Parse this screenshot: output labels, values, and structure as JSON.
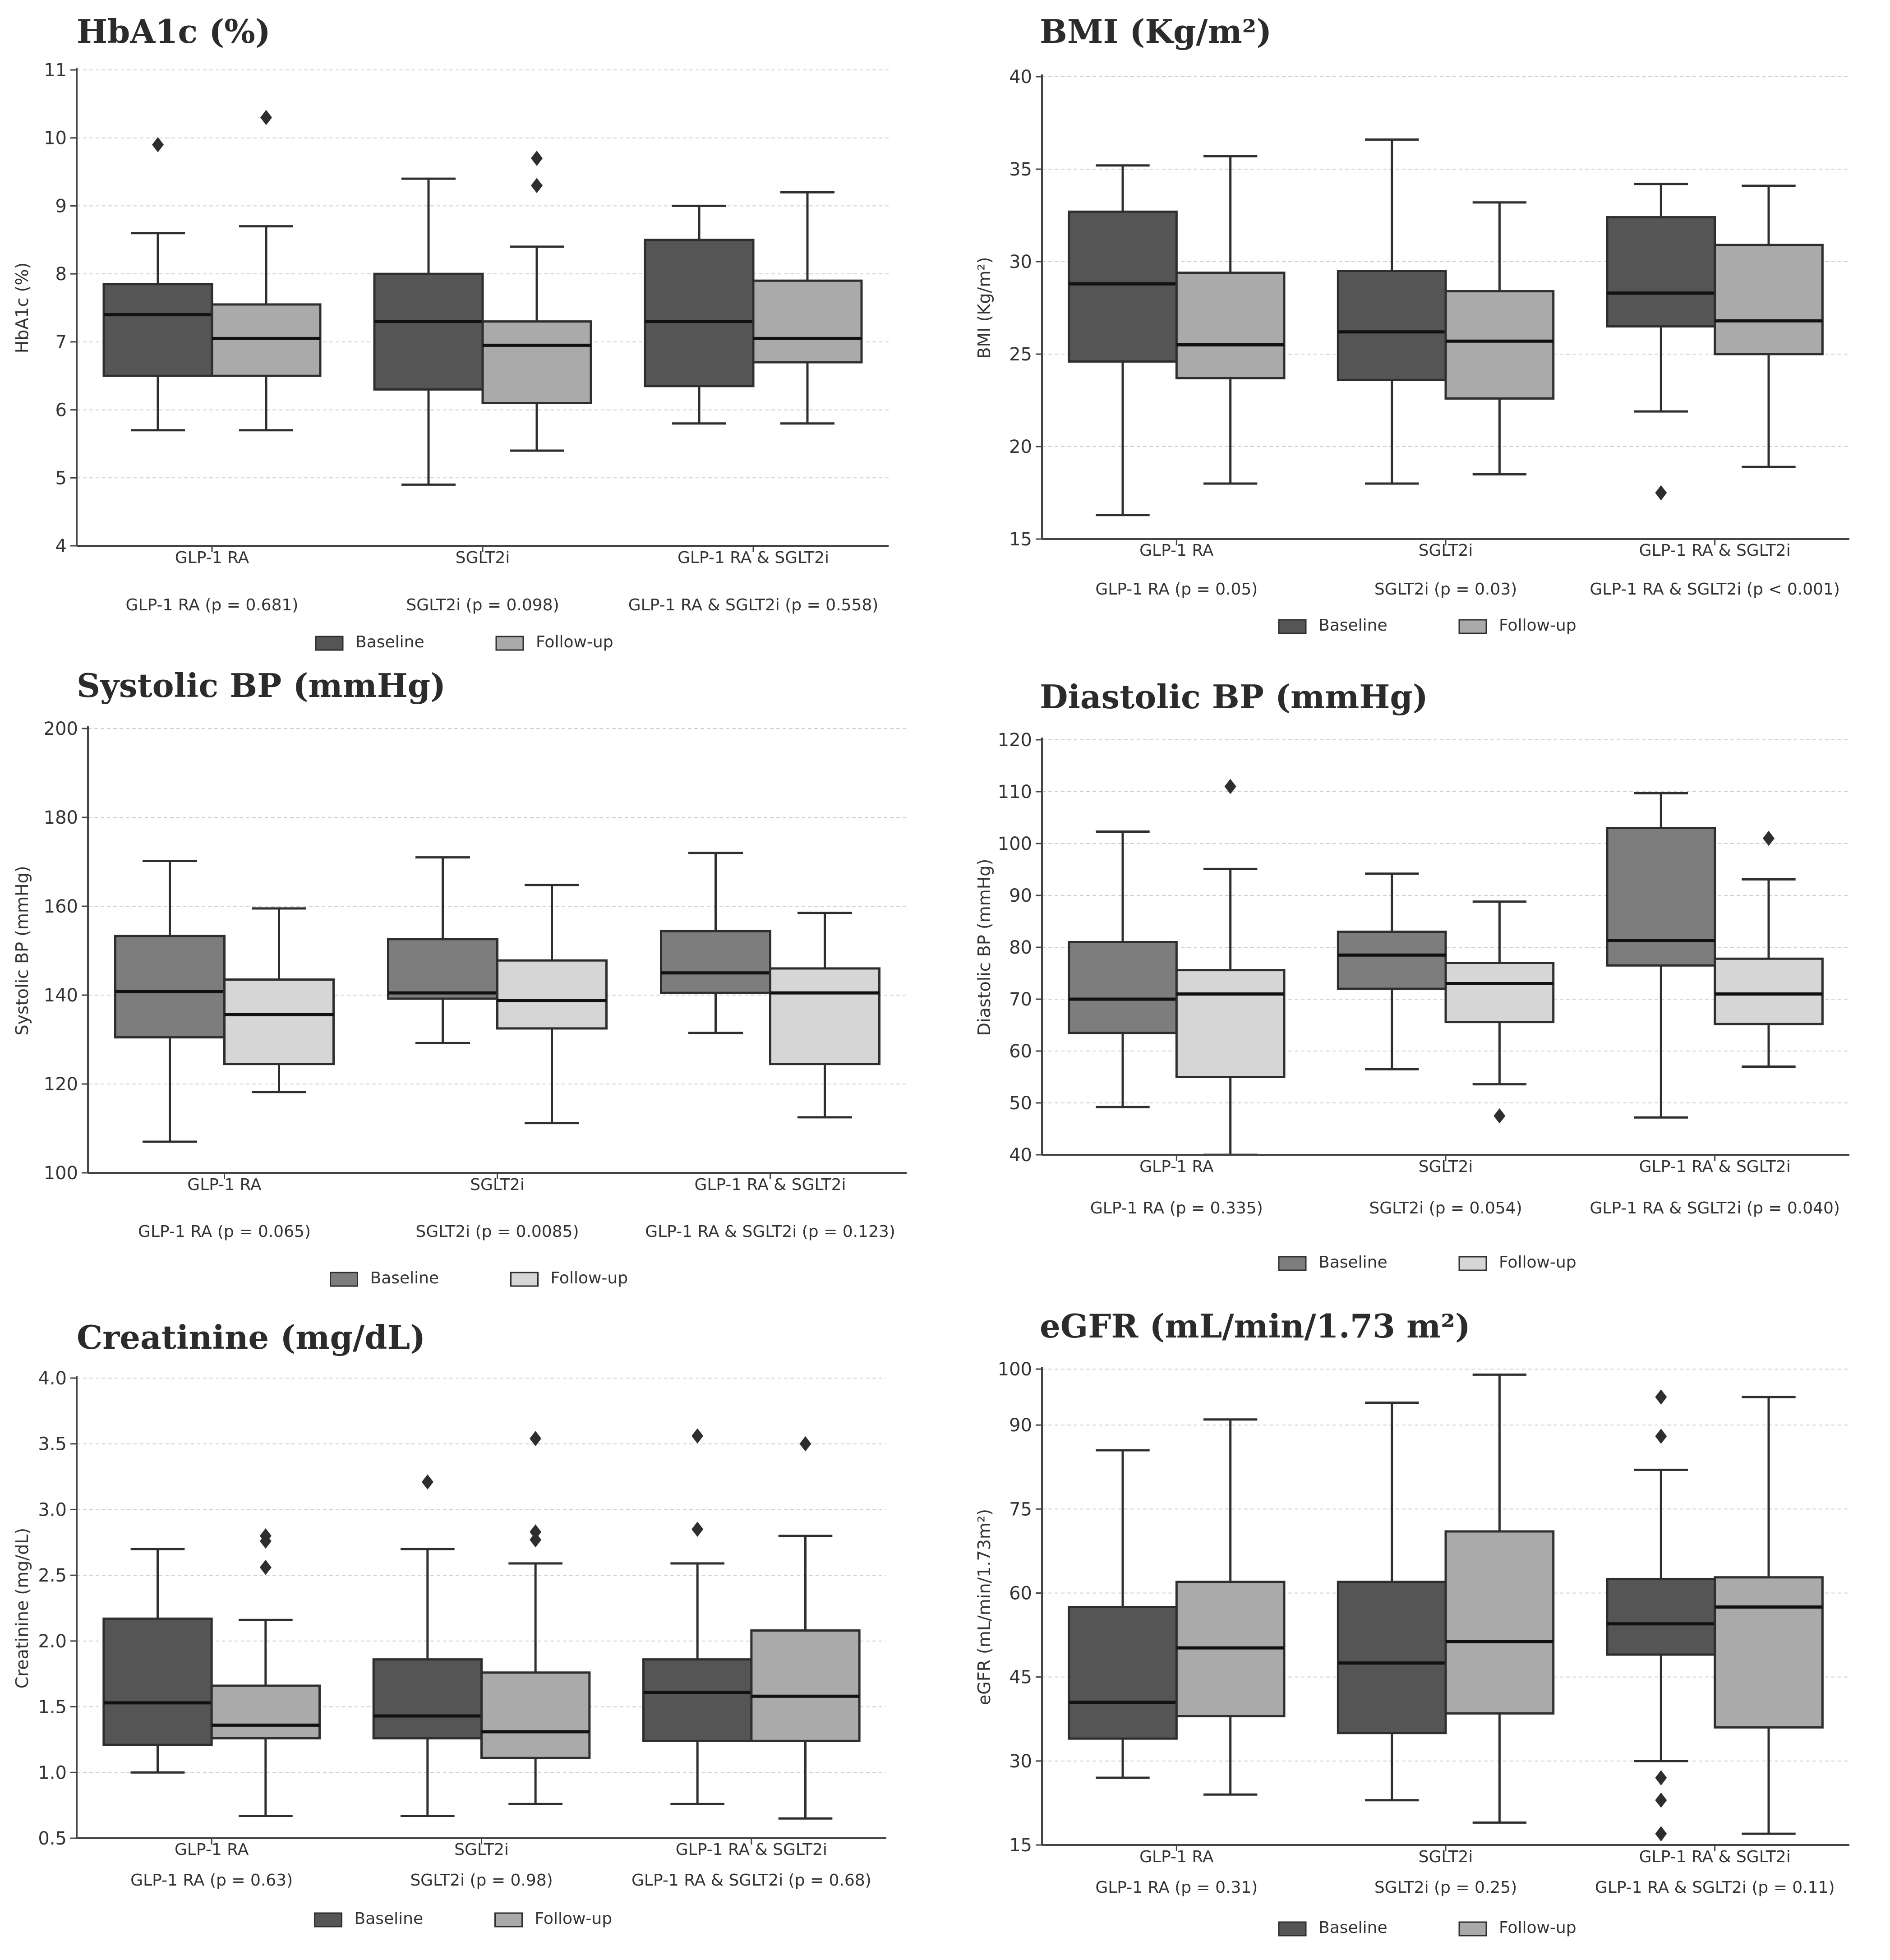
{
  "legend": {
    "baseline": "Baseline",
    "followup": "Follow-up"
  },
  "chart_data": [
    {
      "type": "box",
      "title": "HbA1c (%)",
      "ylabel": "HbA1c (%)",
      "ylim": [
        4,
        11
      ],
      "yticks": [
        4,
        5,
        6,
        7,
        8,
        9,
        10,
        11
      ],
      "colors": {
        "baseline": "#555555",
        "followup": "#aaaaaa"
      },
      "categories": [
        "GLP-1 RA",
        "SGLT2i",
        "GLP-1 RA & SGLT2i"
      ],
      "pvalues": [
        "GLP-1 RA (p = 0.681)",
        "SGLT2i (p = 0.098)",
        "GLP-1 RA & SGLT2i (p = 0.558)"
      ],
      "series": [
        {
          "name": "Baseline",
          "boxes": [
            {
              "min": 5.7,
              "q1": 6.5,
              "median": 7.4,
              "q3": 7.85,
              "max": 8.6,
              "fliers": [
                9.9
              ]
            },
            {
              "min": 4.9,
              "q1": 6.3,
              "median": 7.3,
              "q3": 8.0,
              "max": 9.4,
              "fliers": []
            },
            {
              "min": 5.8,
              "q1": 6.35,
              "median": 7.3,
              "q3": 8.5,
              "max": 9.0,
              "fliers": []
            }
          ]
        },
        {
          "name": "Follow-up",
          "boxes": [
            {
              "min": 5.7,
              "q1": 6.5,
              "median": 7.05,
              "q3": 7.55,
              "max": 8.7,
              "fliers": [
                10.3
              ]
            },
            {
              "min": 5.4,
              "q1": 6.1,
              "median": 6.95,
              "q3": 7.3,
              "max": 8.4,
              "fliers": [
                9.3,
                9.7
              ]
            },
            {
              "min": 5.8,
              "q1": 6.7,
              "median": 7.05,
              "q3": 7.9,
              "max": 9.2,
              "fliers": []
            }
          ]
        }
      ]
    },
    {
      "type": "box",
      "title": "BMI (Kg/m²)",
      "ylabel": "BMI (Kg/m²)",
      "ylim": [
        15,
        40
      ],
      "yticks": [
        15,
        20,
        25,
        30,
        35,
        40
      ],
      "colors": {
        "baseline": "#555555",
        "followup": "#aaaaaa"
      },
      "categories": [
        "GLP-1 RA",
        "SGLT2i",
        "GLP-1 RA & SGLT2i"
      ],
      "pvalues": [
        "GLP-1 RA (p = 0.05)",
        "SGLT2i (p = 0.03)",
        "GLP-1 RA & SGLT2i (p < 0.001)"
      ],
      "series": [
        {
          "name": "Baseline",
          "boxes": [
            {
              "min": 16.3,
              "q1": 24.6,
              "median": 28.8,
              "q3": 32.7,
              "max": 35.2,
              "fliers": []
            },
            {
              "min": 18.0,
              "q1": 23.6,
              "median": 26.2,
              "q3": 29.5,
              "max": 36.6,
              "fliers": []
            },
            {
              "min": 21.9,
              "q1": 26.5,
              "median": 28.3,
              "q3": 32.4,
              "max": 34.2,
              "fliers": [
                17.5
              ]
            }
          ]
        },
        {
          "name": "Follow-up",
          "boxes": [
            {
              "min": 18.0,
              "q1": 23.7,
              "median": 25.5,
              "q3": 29.4,
              "max": 35.7,
              "fliers": []
            },
            {
              "min": 18.5,
              "q1": 22.6,
              "median": 25.7,
              "q3": 28.4,
              "max": 33.2,
              "fliers": []
            },
            {
              "min": 18.9,
              "q1": 25.0,
              "median": 26.8,
              "q3": 30.9,
              "max": 34.1,
              "fliers": []
            }
          ]
        }
      ]
    },
    {
      "type": "box",
      "title": "Systolic BP (mmHg)",
      "ylabel": "Systolic BP (mmHg)",
      "ylim": [
        100,
        200
      ],
      "yticks": [
        100,
        120,
        140,
        160,
        180,
        200
      ],
      "colors": {
        "baseline": "#7d7d7d",
        "followup": "#d6d6d6"
      },
      "categories": [
        "GLP-1 RA",
        "SGLT2i",
        "GLP-1 RA & SGLT2i"
      ],
      "pvalues": [
        "GLP-1 RA (p = 0.065)",
        "SGLT2i (p = 0.0085)",
        "GLP-1 RA & SGLT2i (p = 0.123)"
      ],
      "series": [
        {
          "name": "Baseline",
          "boxes": [
            {
              "min": 107,
              "q1": 130.5,
              "median": 140.8,
              "q3": 153.3,
              "max": 170.2,
              "fliers": []
            },
            {
              "min": 129.2,
              "q1": 139.2,
              "median": 140.5,
              "q3": 152.6,
              "max": 171.0,
              "fliers": []
            },
            {
              "min": 131.5,
              "q1": 140.5,
              "median": 145.0,
              "q3": 154.4,
              "max": 172.0,
              "fliers": []
            }
          ]
        },
        {
          "name": "Follow-up",
          "boxes": [
            {
              "min": 118.2,
              "q1": 124.5,
              "median": 135.6,
              "q3": 143.5,
              "max": 159.5,
              "fliers": []
            },
            {
              "min": 111.2,
              "q1": 132.5,
              "median": 138.8,
              "q3": 147.8,
              "max": 164.8,
              "fliers": []
            },
            {
              "min": 112.5,
              "q1": 124.5,
              "median": 140.5,
              "q3": 146.0,
              "max": 158.5,
              "fliers": []
            }
          ]
        }
      ]
    },
    {
      "type": "box",
      "title": "Diastolic BP (mmHg)",
      "ylabel": "Diastolic BP (mmHg)",
      "ylim": [
        40,
        120
      ],
      "yticks": [
        40,
        50,
        60,
        70,
        80,
        90,
        100,
        110,
        120
      ],
      "colors": {
        "baseline": "#7d7d7d",
        "followup": "#d6d6d6"
      },
      "categories": [
        "GLP-1 RA",
        "SGLT2i",
        "GLP-1 RA & SGLT2i"
      ],
      "pvalues": [
        "GLP-1 RA (p = 0.335)",
        "SGLT2i (p = 0.054)",
        "GLP-1 RA & SGLT2i (p = 0.040)"
      ],
      "series": [
        {
          "name": "Baseline",
          "boxes": [
            {
              "min": 49.2,
              "q1": 63.5,
              "median": 70.0,
              "q3": 81.0,
              "max": 102.3,
              "fliers": []
            },
            {
              "min": 56.5,
              "q1": 72.0,
              "median": 78.5,
              "q3": 83.0,
              "max": 94.2,
              "fliers": []
            },
            {
              "min": 47.2,
              "q1": 76.5,
              "median": 81.3,
              "q3": 103.0,
              "max": 109.7,
              "fliers": []
            }
          ]
        },
        {
          "name": "Follow-up",
          "boxes": [
            {
              "min": 40.0,
              "q1": 55.0,
              "median": 71.0,
              "q3": 75.6,
              "max": 95.1,
              "fliers": [
                111.0
              ]
            },
            {
              "min": 53.6,
              "q1": 65.6,
              "median": 73.0,
              "q3": 77.0,
              "max": 88.8,
              "fliers": [
                47.5
              ]
            },
            {
              "min": 57.0,
              "q1": 65.2,
              "median": 71.0,
              "q3": 77.8,
              "max": 93.1,
              "fliers": [
                101.0
              ]
            }
          ]
        }
      ]
    },
    {
      "type": "box",
      "title": "Creatinine (mg/dL)",
      "ylabel": "Creatinine (mg/dL)",
      "ylim": [
        0.5,
        4.0
      ],
      "yticks": [
        0.5,
        1.0,
        1.5,
        2.0,
        2.5,
        3.0,
        3.5,
        4.0
      ],
      "tickDecimals": 1,
      "colors": {
        "baseline": "#555555",
        "followup": "#aaaaaa"
      },
      "categories": [
        "GLP-1 RA",
        "SGLT2i",
        "GLP-1 RA & SGLT2i"
      ],
      "pvalues": [
        "GLP-1 RA (p = 0.63)",
        "SGLT2i (p = 0.98)",
        "GLP-1 RA & SGLT2i (p = 0.68)"
      ],
      "series": [
        {
          "name": "Baseline",
          "boxes": [
            {
              "min": 1.0,
              "q1": 1.21,
              "median": 1.53,
              "q3": 2.17,
              "max": 2.7,
              "fliers": []
            },
            {
              "min": 0.67,
              "q1": 1.26,
              "median": 1.43,
              "q3": 1.86,
              "max": 2.7,
              "fliers": [
                3.21
              ]
            },
            {
              "min": 0.76,
              "q1": 1.24,
              "median": 1.61,
              "q3": 1.86,
              "max": 2.59,
              "fliers": [
                2.85,
                3.56
              ]
            }
          ]
        },
        {
          "name": "Follow-up",
          "boxes": [
            {
              "min": 0.67,
              "q1": 1.26,
              "median": 1.36,
              "q3": 1.66,
              "max": 2.16,
              "fliers": [
                2.56,
                2.76,
                2.8
              ]
            },
            {
              "min": 0.76,
              "q1": 1.11,
              "median": 1.31,
              "q3": 1.76,
              "max": 2.59,
              "fliers": [
                2.77,
                2.83,
                3.54
              ]
            },
            {
              "min": 0.65,
              "q1": 1.24,
              "median": 1.58,
              "q3": 2.08,
              "max": 2.8,
              "fliers": [
                3.5
              ]
            }
          ]
        }
      ]
    },
    {
      "type": "box",
      "title": "eGFR (mL/min/1.73 m²)",
      "ylabel": "eGFR (mL/min/1.73m²)",
      "ylim": [
        15,
        100
      ],
      "yticks": [
        15,
        30,
        45,
        60,
        75,
        90,
        100
      ],
      "colors": {
        "baseline": "#555555",
        "followup": "#aaaaaa"
      },
      "categories": [
        "GLP-1 RA",
        "SGLT2i",
        "GLP-1 RA & SGLT2i"
      ],
      "pvalues": [
        "GLP-1 RA (p = 0.31)",
        "SGLT2i (p = 0.25)",
        "GLP-1 RA & SGLT2i (p = 0.11)"
      ],
      "series": [
        {
          "name": "Baseline",
          "boxes": [
            {
              "min": 27,
              "q1": 34,
              "median": 40.5,
              "q3": 57.5,
              "max": 85.5,
              "fliers": []
            },
            {
              "min": 23,
              "q1": 35,
              "median": 47.5,
              "q3": 62,
              "max": 94,
              "fliers": []
            },
            {
              "min": 30,
              "q1": 49,
              "median": 54.5,
              "q3": 62.5,
              "max": 82,
              "fliers": [
                17,
                23,
                27,
                88,
                95
              ]
            }
          ]
        },
        {
          "name": "Follow-up",
          "boxes": [
            {
              "min": 24,
              "q1": 38,
              "median": 50.2,
              "q3": 62,
              "max": 91,
              "fliers": []
            },
            {
              "min": 19,
              "q1": 38.5,
              "median": 51.3,
              "q3": 71,
              "max": 99,
              "fliers": []
            },
            {
              "min": 17,
              "q1": 36,
              "median": 57.5,
              "q3": 62.8,
              "max": 95,
              "fliers": []
            }
          ]
        }
      ]
    }
  ]
}
